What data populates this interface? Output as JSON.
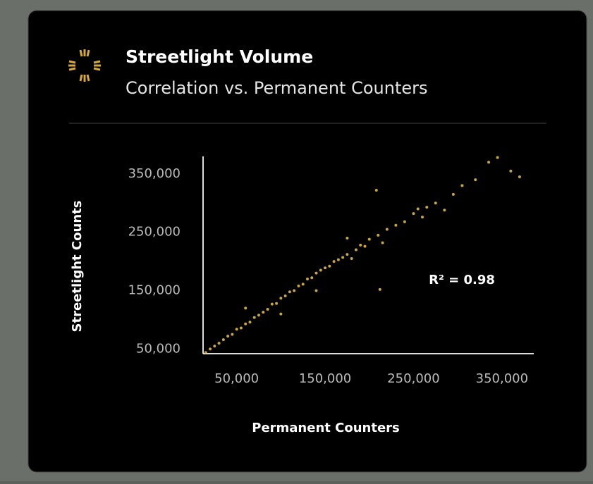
{
  "chart_data": {
    "type": "scatter",
    "title": "Streetlight Volume",
    "subtitle": "Correlation vs. Permanent Counters",
    "x_label": "Permanent Counters",
    "y_label": "Streetlight Counts",
    "annotation": "R² = 0.98",
    "color": "#e8c350",
    "xlim": [
      12000,
      386000
    ],
    "ylim": [
      42000,
      380000
    ],
    "xticks": [
      {
        "value": 50000,
        "label": "50,000"
      },
      {
        "value": 150000,
        "label": "150,000"
      },
      {
        "value": 250000,
        "label": "250,000"
      },
      {
        "value": 350000,
        "label": "350,000"
      }
    ],
    "yticks": [
      {
        "value": 50000,
        "label": "50,000"
      },
      {
        "value": 150000,
        "label": "150,000"
      },
      {
        "value": 250000,
        "label": "250,000"
      },
      {
        "value": 350000,
        "label": "350,000"
      }
    ],
    "x": [
      15000,
      20000,
      25000,
      30000,
      35000,
      40000,
      45000,
      50000,
      55000,
      60000,
      65000,
      70000,
      75000,
      80000,
      85000,
      90000,
      95000,
      100000,
      105000,
      110000,
      115000,
      120000,
      125000,
      130000,
      135000,
      140000,
      145000,
      150000,
      155000,
      160000,
      165000,
      170000,
      175000,
      180000,
      185000,
      190000,
      195000,
      200000,
      210000,
      215000,
      220000,
      230000,
      240000,
      250000,
      255000,
      260000,
      265000,
      275000,
      285000,
      295000,
      305000,
      320000,
      335000,
      345000,
      360000,
      370000,
      212000,
      208000,
      60000,
      100000,
      140000,
      175000
    ],
    "y": [
      44000,
      50000,
      55000,
      60000,
      66000,
      72000,
      75000,
      84000,
      86000,
      93000,
      96000,
      104000,
      108000,
      113000,
      118000,
      127000,
      128000,
      137000,
      141000,
      148000,
      150000,
      158000,
      161000,
      170000,
      172000,
      180000,
      185000,
      189000,
      192000,
      200000,
      203000,
      207000,
      212000,
      205000,
      220000,
      228000,
      226000,
      238000,
      245000,
      232000,
      255000,
      262000,
      268000,
      282000,
      290000,
      276000,
      293000,
      300000,
      288000,
      315000,
      330000,
      340000,
      370000,
      378000,
      355000,
      345000,
      152000,
      322000,
      120000,
      110000,
      150000,
      240000
    ]
  }
}
